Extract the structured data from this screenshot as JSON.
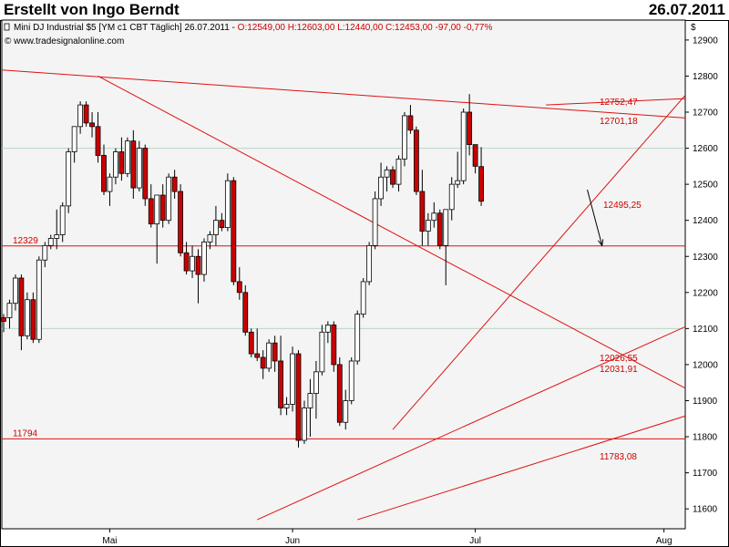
{
  "header": {
    "author": "Erstellt von Ingo Berndt",
    "date": "26.07.2011"
  },
  "legend": {
    "symbol": "Mini DJ Industrial $5 [YM c1 CBT  Täglich] 26.07.2011 - ",
    "ohlc": "O:12549,00 H:12603,00 L:12440,00 C:12453,00 -97,00 -0,77%",
    "source": "© www.tradesignalonline.com"
  },
  "colors": {
    "up": "#ffffff",
    "down": "#cc0000",
    "trendline": "#dd1111",
    "grid": "#b8d6c4",
    "background": "#f4f4f4",
    "label": "#cc0000"
  },
  "chart_data": {
    "type": "candlestick",
    "title": "Mini DJ Industrial $5 [YM c1 CBT Täglich]",
    "currency_label": "$",
    "ylim": [
      11550,
      12980
    ],
    "yticks": [
      11600,
      11700,
      11800,
      11900,
      12000,
      12100,
      12200,
      12300,
      12400,
      12500,
      12600,
      12700,
      12800,
      12900
    ],
    "ytick_labels": [
      "11600",
      "11700",
      "11800",
      "11900",
      "12000",
      "12100",
      "12200",
      "12300",
      "12400",
      "12500",
      "12600",
      "12700",
      "12800",
      "12900"
    ],
    "grid_values": [
      12600,
      12100
    ],
    "x_labels": [
      {
        "index": 18,
        "label": "Mai"
      },
      {
        "index": 49,
        "label": "Jun"
      },
      {
        "index": 80,
        "label": "Jul"
      },
      {
        "index": 112,
        "label": "Aug"
      }
    ],
    "candles": [
      {
        "o": 12130,
        "h": 12140,
        "l": 12090,
        "c": 12120
      },
      {
        "o": 12130,
        "h": 12180,
        "l": 12100,
        "c": 12170
      },
      {
        "o": 12170,
        "h": 12250,
        "l": 12150,
        "c": 12240
      },
      {
        "o": 12240,
        "h": 12250,
        "l": 12040,
        "c": 12080
      },
      {
        "o": 12080,
        "h": 12200,
        "l": 12070,
        "c": 12180
      },
      {
        "o": 12180,
        "h": 12200,
        "l": 12060,
        "c": 12070
      },
      {
        "o": 12070,
        "h": 12300,
        "l": 12060,
        "c": 12290
      },
      {
        "o": 12290,
        "h": 12340,
        "l": 12270,
        "c": 12330
      },
      {
        "o": 12330,
        "h": 12360,
        "l": 12320,
        "c": 12350
      },
      {
        "o": 12350,
        "h": 12430,
        "l": 12320,
        "c": 12360
      },
      {
        "o": 12360,
        "h": 12450,
        "l": 12340,
        "c": 12440
      },
      {
        "o": 12440,
        "h": 12600,
        "l": 12420,
        "c": 12590
      },
      {
        "o": 12590,
        "h": 12660,
        "l": 12560,
        "c": 12660
      },
      {
        "o": 12660,
        "h": 12730,
        "l": 12640,
        "c": 12720
      },
      {
        "o": 12720,
        "h": 12730,
        "l": 12660,
        "c": 12670
      },
      {
        "o": 12670,
        "h": 12700,
        "l": 12630,
        "c": 12660
      },
      {
        "o": 12660,
        "h": 12700,
        "l": 12560,
        "c": 12580
      },
      {
        "o": 12580,
        "h": 12610,
        "l": 12470,
        "c": 12480
      },
      {
        "o": 12480,
        "h": 12530,
        "l": 12440,
        "c": 12520
      },
      {
        "o": 12520,
        "h": 12600,
        "l": 12500,
        "c": 12590
      },
      {
        "o": 12590,
        "h": 12630,
        "l": 12510,
        "c": 12530
      },
      {
        "o": 12530,
        "h": 12630,
        "l": 12520,
        "c": 12620
      },
      {
        "o": 12620,
        "h": 12650,
        "l": 12460,
        "c": 12490
      },
      {
        "o": 12490,
        "h": 12620,
        "l": 12480,
        "c": 12600
      },
      {
        "o": 12600,
        "h": 12610,
        "l": 12440,
        "c": 12460
      },
      {
        "o": 12460,
        "h": 12500,
        "l": 12380,
        "c": 12390
      },
      {
        "o": 12390,
        "h": 12460,
        "l": 12280,
        "c": 12470
      },
      {
        "o": 12470,
        "h": 12500,
        "l": 12380,
        "c": 12400
      },
      {
        "o": 12400,
        "h": 12530,
        "l": 12390,
        "c": 12520
      },
      {
        "o": 12520,
        "h": 12540,
        "l": 12460,
        "c": 12480
      },
      {
        "o": 12480,
        "h": 12500,
        "l": 12300,
        "c": 12310
      },
      {
        "o": 12310,
        "h": 12340,
        "l": 12250,
        "c": 12260
      },
      {
        "o": 12260,
        "h": 12330,
        "l": 12240,
        "c": 12300
      },
      {
        "o": 12300,
        "h": 12320,
        "l": 12170,
        "c": 12250
      },
      {
        "o": 12250,
        "h": 12350,
        "l": 12230,
        "c": 12340
      },
      {
        "o": 12340,
        "h": 12370,
        "l": 12320,
        "c": 12360
      },
      {
        "o": 12360,
        "h": 12440,
        "l": 12330,
        "c": 12400
      },
      {
        "o": 12400,
        "h": 12420,
        "l": 12370,
        "c": 12380
      },
      {
        "o": 12380,
        "h": 12530,
        "l": 12370,
        "c": 12510
      },
      {
        "o": 12510,
        "h": 12520,
        "l": 12220,
        "c": 12230
      },
      {
        "o": 12230,
        "h": 12270,
        "l": 12180,
        "c": 12200
      },
      {
        "o": 12200,
        "h": 12220,
        "l": 12080,
        "c": 12090
      },
      {
        "o": 12090,
        "h": 12100,
        "l": 12020,
        "c": 12030
      },
      {
        "o": 12030,
        "h": 12100,
        "l": 12010,
        "c": 12020
      },
      {
        "o": 12020,
        "h": 12040,
        "l": 11960,
        "c": 11990
      },
      {
        "o": 11990,
        "h": 12070,
        "l": 11980,
        "c": 12060
      },
      {
        "o": 12060,
        "h": 12080,
        "l": 11980,
        "c": 12010
      },
      {
        "o": 12010,
        "h": 12080,
        "l": 11860,
        "c": 11880
      },
      {
        "o": 11880,
        "h": 11910,
        "l": 11860,
        "c": 11890
      },
      {
        "o": 11890,
        "h": 12050,
        "l": 11870,
        "c": 12030
      },
      {
        "o": 12030,
        "h": 12040,
        "l": 11770,
        "c": 11790
      },
      {
        "o": 11790,
        "h": 11900,
        "l": 11780,
        "c": 11880
      },
      {
        "o": 11880,
        "h": 11960,
        "l": 11800,
        "c": 11920
      },
      {
        "o": 11920,
        "h": 12010,
        "l": 11850,
        "c": 11980
      },
      {
        "o": 11980,
        "h": 12110,
        "l": 11970,
        "c": 12090
      },
      {
        "o": 12090,
        "h": 12120,
        "l": 12060,
        "c": 12110
      },
      {
        "o": 12110,
        "h": 12120,
        "l": 11980,
        "c": 12000
      },
      {
        "o": 12000,
        "h": 12020,
        "l": 11830,
        "c": 11840
      },
      {
        "o": 11840,
        "h": 11930,
        "l": 11820,
        "c": 11900
      },
      {
        "o": 11900,
        "h": 12020,
        "l": 11890,
        "c": 12010
      },
      {
        "o": 12010,
        "h": 12150,
        "l": 12000,
        "c": 12140
      },
      {
        "o": 12140,
        "h": 12240,
        "l": 12130,
        "c": 12230
      },
      {
        "o": 12230,
        "h": 12340,
        "l": 12220,
        "c": 12330
      },
      {
        "o": 12330,
        "h": 12480,
        "l": 12320,
        "c": 12460
      },
      {
        "o": 12460,
        "h": 12560,
        "l": 12440,
        "c": 12520
      },
      {
        "o": 12520,
        "h": 12550,
        "l": 12480,
        "c": 12540
      },
      {
        "o": 12540,
        "h": 12550,
        "l": 12490,
        "c": 12500
      },
      {
        "o": 12500,
        "h": 12580,
        "l": 12480,
        "c": 12570
      },
      {
        "o": 12570,
        "h": 12700,
        "l": 12550,
        "c": 12690
      },
      {
        "o": 12690,
        "h": 12720,
        "l": 12640,
        "c": 12650
      },
      {
        "o": 12650,
        "h": 12660,
        "l": 12470,
        "c": 12480
      },
      {
        "o": 12480,
        "h": 12540,
        "l": 12330,
        "c": 12370
      },
      {
        "o": 12370,
        "h": 12420,
        "l": 12330,
        "c": 12400
      },
      {
        "o": 12400,
        "h": 12450,
        "l": 12380,
        "c": 12420
      },
      {
        "o": 12420,
        "h": 12430,
        "l": 12320,
        "c": 12330
      },
      {
        "o": 12330,
        "h": 12420,
        "l": 12220,
        "c": 12430
      },
      {
        "o": 12430,
        "h": 12520,
        "l": 12400,
        "c": 12500
      },
      {
        "o": 12500,
        "h": 12590,
        "l": 12490,
        "c": 12510
      },
      {
        "o": 12510,
        "h": 12710,
        "l": 12500,
        "c": 12700
      },
      {
        "o": 12700,
        "h": 12750,
        "l": 12580,
        "c": 12610
      },
      {
        "o": 12610,
        "h": 12600,
        "l": 12530,
        "c": 12550
      },
      {
        "o": 12549,
        "h": 12603,
        "l": 12440,
        "c": 12453
      }
    ],
    "horizontal_levels": [
      {
        "value": 12329,
        "label": "12329"
      },
      {
        "value": 11794,
        "label": "11794"
      }
    ],
    "trendlines": [
      {
        "from": {
          "i": -3,
          "v": 12820
        },
        "to": {
          "i": 119,
          "v": 12680
        }
      },
      {
        "from": {
          "i": 16,
          "v": 12800
        },
        "to": {
          "i": 119,
          "v": 11905
        }
      },
      {
        "from": {
          "i": 43,
          "v": 11570
        },
        "to": {
          "i": 119,
          "v": 12130
        }
      },
      {
        "from": {
          "i": 66,
          "v": 11820
        },
        "to": {
          "i": 119,
          "v": 12810
        }
      },
      {
        "from": {
          "i": 60,
          "v": 11570
        },
        "to": {
          "i": 119,
          "v": 11875
        }
      },
      {
        "from": {
          "i": 92,
          "v": 12720
        },
        "to": {
          "i": 119,
          "v": 12740
        }
      }
    ],
    "annotations": [
      {
        "value": 12752.47,
        "label": "12752,47"
      },
      {
        "value": 12701.18,
        "label": "12701,18"
      },
      {
        "value": 12495.25,
        "label": "12495,25"
      },
      {
        "value": 12026.55,
        "label": "12026,55"
      },
      {
        "value": 12031.91,
        "label": "12031,91"
      },
      {
        "value": 11783.08,
        "label": "11783,08"
      }
    ],
    "arrow": {
      "from": {
        "i": 99,
        "v": 12485
      },
      "to": {
        "i": 101.5,
        "v": 12330
      }
    }
  }
}
